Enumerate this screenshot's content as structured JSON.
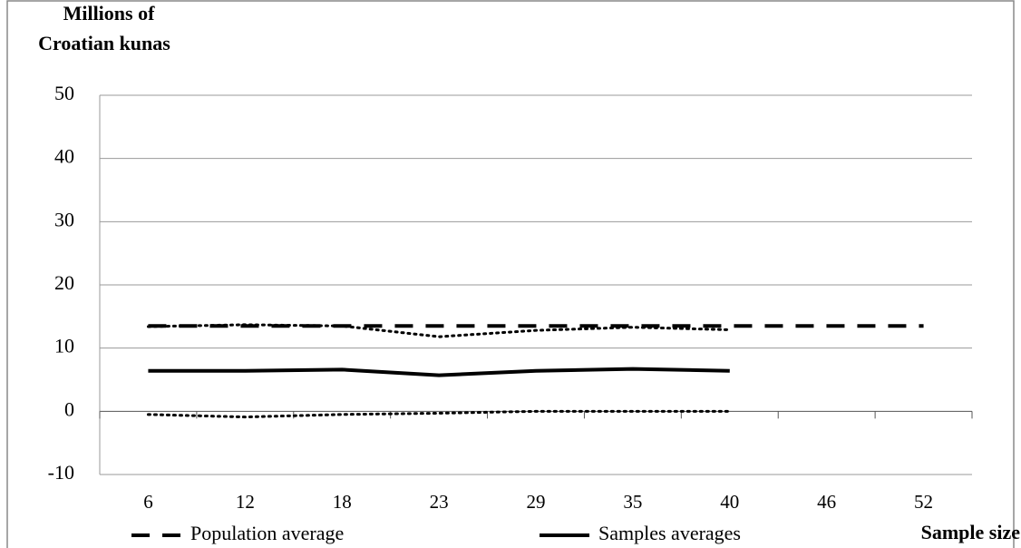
{
  "chart_data": {
    "type": "line",
    "y_label": [
      "Millions of",
      "Croatian kunas"
    ],
    "x_label": "Sample size",
    "categories": [
      "6",
      "12",
      "18",
      "23",
      "29",
      "35",
      "40",
      "46",
      "52"
    ],
    "series": [
      {
        "name": "Population average",
        "color": "#000000",
        "style": "dashed",
        "values": [
          13.5,
          13.5,
          13.5,
          13.5,
          13.5,
          13.5,
          13.5,
          13.5,
          13.5
        ]
      },
      {
        "name": "Samples averages",
        "color": "#000000",
        "style": "solid",
        "values": [
          6.4,
          6.4,
          6.6,
          5.7,
          6.4,
          6.7,
          6.4,
          null,
          null
        ]
      },
      {
        "color": "#000000",
        "style": "dotted",
        "values": [
          13.4,
          13.7,
          13.5,
          11.8,
          12.8,
          13.3,
          12.9,
          null,
          null
        ]
      },
      {
        "color": "#000000",
        "style": "dotted",
        "values": [
          -0.5,
          -0.9,
          -0.5,
          -0.3,
          0,
          0,
          0,
          null,
          null
        ]
      }
    ],
    "ylim": [
      -10,
      50
    ],
    "yticks": [
      -10,
      0,
      10,
      20,
      30,
      40,
      50
    ],
    "grid": true
  }
}
